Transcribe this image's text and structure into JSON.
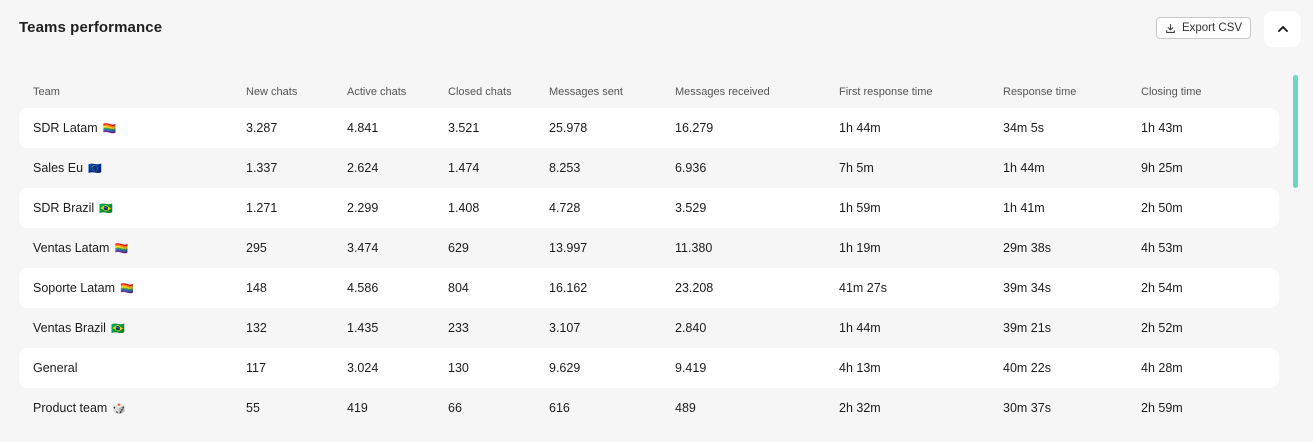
{
  "title": "Teams performance",
  "export_label": "Export CSV",
  "columns": [
    "Team",
    "New chats",
    "Active chats",
    "Closed chats",
    "Messages sent",
    "Messages received",
    "First response time",
    "Response time",
    "Closing time"
  ],
  "rows": [
    {
      "team": "SDR Latam",
      "flag": "🏳️‍🌈",
      "new": "3.287",
      "active": "4.841",
      "closed": "3.521",
      "sent": "25.978",
      "received": "16.279",
      "first": "1h 44m",
      "response": "34m 5s",
      "closing": "1h 43m"
    },
    {
      "team": "Sales Eu",
      "flag": "🇪🇺",
      "new": "1.337",
      "active": "2.624",
      "closed": "1.474",
      "sent": "8.253",
      "received": "6.936",
      "first": "7h 5m",
      "response": "1h 44m",
      "closing": "9h 25m"
    },
    {
      "team": "SDR Brazil",
      "flag": "🇧🇷",
      "new": "1.271",
      "active": "2.299",
      "closed": "1.408",
      "sent": "4.728",
      "received": "3.529",
      "first": "1h 59m",
      "response": "1h 41m",
      "closing": "2h 50m"
    },
    {
      "team": "Ventas Latam",
      "flag": "🏳️‍🌈",
      "new": "295",
      "active": "3.474",
      "closed": "629",
      "sent": "13.997",
      "received": "11.380",
      "first": "1h 19m",
      "response": "29m 38s",
      "closing": "4h 53m"
    },
    {
      "team": "Soporte Latam",
      "flag": "🏳️‍🌈",
      "new": "148",
      "active": "4.586",
      "closed": "804",
      "sent": "16.162",
      "received": "23.208",
      "first": "41m 27s",
      "response": "39m 34s",
      "closing": "2h 54m"
    },
    {
      "team": "Ventas Brazil",
      "flag": "🇧🇷",
      "new": "132",
      "active": "1.435",
      "closed": "233",
      "sent": "3.107",
      "received": "2.840",
      "first": "1h 44m",
      "response": "39m 21s",
      "closing": "2h 52m"
    },
    {
      "team": "General",
      "flag": "",
      "new": "117",
      "active": "3.024",
      "closed": "130",
      "sent": "9.629",
      "received": "9.419",
      "first": "4h 13m",
      "response": "40m 22s",
      "closing": "4h 28m"
    },
    {
      "team": "Product team",
      "flag": "🎲",
      "new": "55",
      "active": "419",
      "closed": "66",
      "sent": "616",
      "received": "489",
      "first": "2h 32m",
      "response": "30m 37s",
      "closing": "2h 59m"
    }
  ],
  "icons": {
    "export": "download-icon",
    "collapse": "chevron-up-icon"
  },
  "colors": {
    "background": "#f6f6f6",
    "row_highlight": "#ffffff",
    "scrollbar": "#6cd6c1"
  }
}
